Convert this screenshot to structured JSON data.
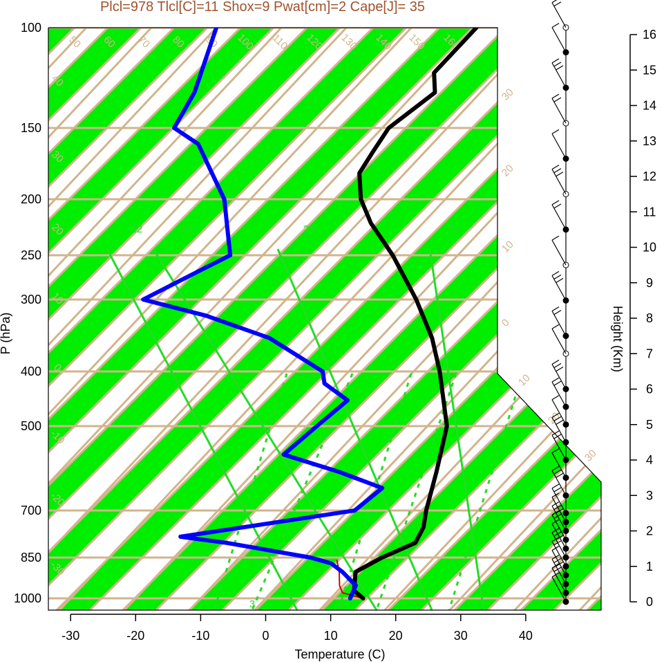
{
  "title": "Plcl=978 Tlcl[C]=11 Shox=9 Pwat[cm]=2 Cape[J]= 35",
  "colors": {
    "band": "#00ee00",
    "grid": "#d2b48c",
    "temperature": "#000000",
    "dewpoint": "#0000ff",
    "parcel": "#cc0000",
    "mixing": "#22dd22",
    "title": "#a0522d"
  },
  "chart_data": {
    "type": "skew-t",
    "xlabel": "Temperature (C)",
    "ylabel": "P (hPa)",
    "y2label": "Height (Km)",
    "xlim": [
      -34,
      52
    ],
    "ylim": [
      1050,
      100
    ],
    "x_ticks": [
      -30,
      -20,
      -10,
      0,
      10,
      20,
      30,
      40
    ],
    "x_tick_labels": [
      "-30",
      "-20",
      "-10",
      "0",
      "10",
      "20",
      "30",
      "40"
    ],
    "p_levels": [
      1000,
      850,
      700,
      500,
      400,
      300,
      250,
      200,
      150,
      100
    ],
    "p_tick_labels": [
      "1000",
      "850",
      "700",
      "500",
      "400",
      "300",
      "250",
      "200",
      "150",
      "100"
    ],
    "height_ticks": [
      0,
      1,
      2,
      3,
      4,
      5,
      6,
      7,
      8,
      9,
      10,
      11,
      12,
      13,
      14,
      15,
      16
    ],
    "height_tick_labels": [
      "0",
      "1",
      "2",
      "3",
      "4",
      "5",
      "6",
      "7",
      "8",
      "9",
      "10",
      "11",
      "12",
      "13",
      "14",
      "15",
      "16"
    ],
    "isotherm_labels": [
      "50",
      "60",
      "70",
      "80",
      "90",
      "100",
      "110",
      "120",
      "130",
      "140",
      "150",
      "160"
    ],
    "isotherm_side_labels": [
      "40",
      "30",
      "20",
      "10",
      "0",
      "-10",
      "-20",
      "-30"
    ],
    "isotherm_right_labels": [
      "30",
      "20",
      "10",
      "0",
      "10",
      "20",
      "30"
    ],
    "mixing_labels_top": [
      "12",
      "16",
      "24",
      "32"
    ],
    "mixing_labels_bottom": [
      "3",
      "8"
    ],
    "temperature_profile": [
      {
        "p": 1000,
        "t": 15.0
      },
      {
        "p": 970,
        "t": 12.5
      },
      {
        "p": 900,
        "t": 10.0
      },
      {
        "p": 850,
        "t": 12.0
      },
      {
        "p": 800,
        "t": 15.0
      },
      {
        "p": 750,
        "t": 14.0
      },
      {
        "p": 700,
        "t": 12.0
      },
      {
        "p": 600,
        "t": 8.0
      },
      {
        "p": 500,
        "t": 3.0
      },
      {
        "p": 400,
        "t": -6.0
      },
      {
        "p": 350,
        "t": -12.0
      },
      {
        "p": 300,
        "t": -20.0
      },
      {
        "p": 250,
        "t": -30.0
      },
      {
        "p": 220,
        "t": -38.0
      },
      {
        "p": 200,
        "t": -43.0
      },
      {
        "p": 180,
        "t": -47.0
      },
      {
        "p": 165,
        "t": -48.0
      },
      {
        "p": 150,
        "t": -49.0
      },
      {
        "p": 130,
        "t": -47.0
      },
      {
        "p": 120,
        "t": -50.0
      },
      {
        "p": 100,
        "t": -50.0
      }
    ],
    "dewpoint_profile": [
      {
        "p": 1000,
        "td": 13.0
      },
      {
        "p": 950,
        "td": 12.0
      },
      {
        "p": 900,
        "td": 8.0
      },
      {
        "p": 870,
        "td": 5.0
      },
      {
        "p": 850,
        "td": 1.0
      },
      {
        "p": 800,
        "td": -14.0
      },
      {
        "p": 780,
        "td": -22.0
      },
      {
        "p": 700,
        "td": 1.0
      },
      {
        "p": 640,
        "td": 2.0
      },
      {
        "p": 600,
        "td": -7.0
      },
      {
        "p": 560,
        "td": -18.0
      },
      {
        "p": 500,
        "td": -17.0
      },
      {
        "p": 450,
        "td": -16.0
      },
      {
        "p": 420,
        "td": -22.0
      },
      {
        "p": 400,
        "td": -24.0
      },
      {
        "p": 350,
        "td": -37.0
      },
      {
        "p": 320,
        "td": -50.0
      },
      {
        "p": 300,
        "td": -62.0
      },
      {
        "p": 270,
        "td": -58.0
      },
      {
        "p": 250,
        "td": -55.0
      },
      {
        "p": 200,
        "td": -64.0
      },
      {
        "p": 160,
        "td": -76.0
      },
      {
        "p": 150,
        "td": -82.0
      },
      {
        "p": 130,
        "td": -84.0
      },
      {
        "p": 100,
        "td": -90.0
      }
    ],
    "parcel_profile": [
      {
        "p": 1000,
        "t": 15.0
      },
      {
        "p": 978,
        "t": 11.0
      },
      {
        "p": 950,
        "t": 9.5
      },
      {
        "p": 900,
        "t": 7.5
      },
      {
        "p": 860,
        "t": 5.5
      }
    ],
    "wind_heights_km": [
      0,
      0.25,
      0.5,
      0.75,
      1,
      1.25,
      1.5,
      1.75,
      2,
      2.25,
      2.5,
      3,
      3.5,
      4,
      4.5,
      5,
      5.5,
      6,
      7,
      7.5,
      8.5,
      9.5,
      10.5,
      11.5,
      12.5,
      13.5,
      14.5,
      15.5,
      16.5
    ],
    "wind_markers": [
      "filled",
      "filled",
      "filled",
      "filled",
      "filled",
      "filled",
      "filled",
      "filled",
      "filled",
      "filled",
      "filled",
      "filled",
      "filled",
      "filled",
      "filled",
      "filled",
      "filled",
      "filled",
      "open",
      "filled",
      "filled",
      "open",
      "filled",
      "open",
      "filled",
      "open",
      "filled",
      "filled",
      "open"
    ]
  }
}
